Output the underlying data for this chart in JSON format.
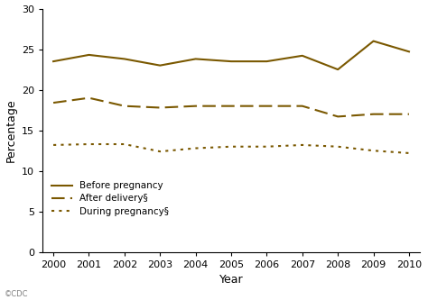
{
  "years": [
    2000,
    2001,
    2002,
    2003,
    2004,
    2005,
    2006,
    2007,
    2008,
    2009,
    2010
  ],
  "before_pregnancy": [
    23.5,
    24.3,
    23.8,
    23.0,
    23.8,
    23.5,
    23.5,
    24.2,
    22.5,
    26.0,
    24.7
  ],
  "after_delivery": [
    18.4,
    19.0,
    18.0,
    17.8,
    18.0,
    18.0,
    18.0,
    18.0,
    16.7,
    17.0,
    17.0
  ],
  "during_pregnancy": [
    13.2,
    13.3,
    13.3,
    12.4,
    12.8,
    13.0,
    13.0,
    13.2,
    13.0,
    12.5,
    12.2
  ],
  "line_color": "#7a5800",
  "ylim": [
    0,
    30
  ],
  "xlim": [
    2000,
    2010
  ],
  "ylabel": "Percentage",
  "xlabel": "Year",
  "yticks": [
    0,
    5,
    10,
    15,
    20,
    25,
    30
  ],
  "xticks": [
    2000,
    2001,
    2002,
    2003,
    2004,
    2005,
    2006,
    2007,
    2008,
    2009,
    2010
  ],
  "legend_labels": [
    "Before pregnancy",
    "After delivery§",
    "During pregnancy§"
  ],
  "bg_color": "#ffffff",
  "watermark": "©CDC"
}
